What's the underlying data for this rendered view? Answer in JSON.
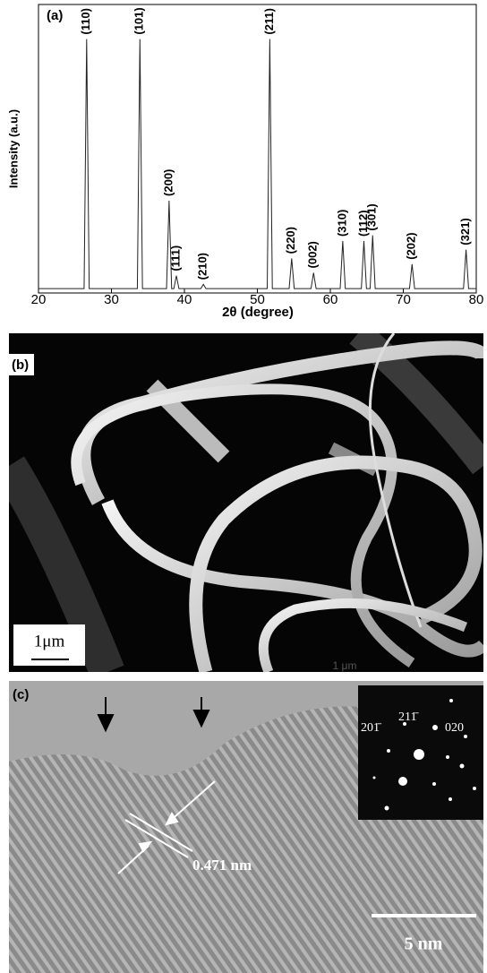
{
  "chart_data": {
    "type": "line",
    "panel_label": "(a)",
    "x_label": "2θ (degree)",
    "y_label": "Intensity (a.u.)",
    "x": [
      20,
      26.25,
      26.6,
      26.95,
      33.55,
      33.9,
      34.25,
      37.55,
      37.9,
      38.25,
      38.55,
      38.9,
      39.25,
      42.25,
      42.6,
      42.95,
      51.35,
      51.7,
      52.05,
      54.35,
      54.7,
      55.05,
      57.35,
      57.7,
      58.05,
      61.35,
      61.7,
      62.05,
      64.25,
      64.6,
      64.95,
      65.45,
      65.8,
      66.15,
      70.85,
      71.2,
      71.55,
      78.25,
      78.6,
      78.95,
      80
    ],
    "values": [
      1.5,
      1.5,
      88,
      1.5,
      1.5,
      88,
      1.5,
      1.5,
      32,
      1.5,
      1.5,
      6,
      1.5,
      1.5,
      3,
      1.5,
      1.5,
      88,
      1.5,
      1.5,
      12,
      1.5,
      1.5,
      7,
      1.5,
      1.5,
      18,
      1.5,
      1.5,
      18,
      1.5,
      1.5,
      20,
      1.5,
      1.5,
      10,
      1.5,
      1.5,
      15,
      1.5,
      1.5
    ],
    "color": "#222222",
    "xlim": [
      20,
      80
    ],
    "xticks": [
      20,
      30,
      40,
      50,
      60,
      70,
      80
    ],
    "ylim": [
      0,
      100
    ],
    "annotations": [
      {
        "text": "(110)",
        "x": 26.6
      },
      {
        "text": "(101)",
        "x": 33.9
      },
      {
        "text": "(200)",
        "x": 37.9
      },
      {
        "text": "(111)",
        "x": 38.9
      },
      {
        "text": "(210)",
        "x": 42.6
      },
      {
        "text": "(211)",
        "x": 51.7
      },
      {
        "text": "(220)",
        "x": 54.7
      },
      {
        "text": "(002)",
        "x": 57.7
      },
      {
        "text": "(310)",
        "x": 61.7
      },
      {
        "text": "(112)",
        "x": 64.6
      },
      {
        "text": "(301)",
        "x": 65.8
      },
      {
        "text": "(202)",
        "x": 71.2
      },
      {
        "text": "(321)",
        "x": 78.6
      }
    ]
  },
  "panel_b": {
    "label": "(b)",
    "scale_bar": "1μm",
    "faint_caption": "1 μm"
  },
  "panel_c": {
    "label": "(c)",
    "spot_labels": [
      "201̄",
      "211̄",
      "020"
    ],
    "spacing": "0.471 nm",
    "scale_bar": "5 nm"
  }
}
